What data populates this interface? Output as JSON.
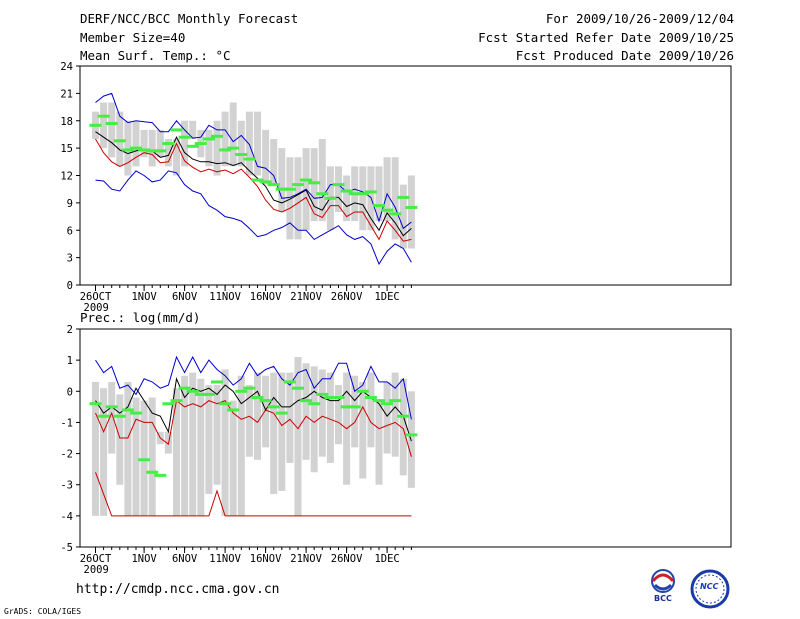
{
  "header": {
    "title": "DERF/NCC/BCC Monthly Forecast",
    "member_size": "Member Size=40",
    "variable": "Mean Surf. Temp.: °C",
    "period": "For 2009/10/26-2009/12/04",
    "started": "Fcst Started Refer Date 2009/10/25",
    "produced": "Fcst Produced Date 2009/10/26"
  },
  "footer": {
    "url": "http://cmdp.ncc.cma.gov.cn",
    "credit": "GrADS: COLA/IGES",
    "bcc_logo": "BCC",
    "ncc_logo": "NCC"
  },
  "colors": {
    "box": "#d2d2d2",
    "mean": "#000000",
    "low": "#cc0000",
    "high": "#0000cc",
    "member": "#44ee44"
  },
  "chart_data": [
    {
      "type": "box-line",
      "title": "Mean Surf. Temp.: °C",
      "x_start_day": 26,
      "days": 40,
      "x_tick_labels": [
        "26OCT",
        "1NOV",
        "6NOV",
        "11NOV",
        "16NOV",
        "21NOV",
        "26NOV",
        "1DEC"
      ],
      "x_sub_label": "2009",
      "yticks": [
        0,
        3,
        6,
        9,
        12,
        15,
        18,
        21,
        24
      ],
      "ylim": [
        0,
        24
      ],
      "box_low": [
        16,
        15,
        14,
        13,
        12,
        13,
        14,
        13,
        14,
        13,
        12,
        13,
        16,
        14,
        13,
        12,
        13,
        13,
        13,
        12,
        12,
        11,
        11,
        8,
        5,
        5,
        6,
        7,
        7,
        6,
        8,
        7,
        7,
        6,
        6,
        7,
        7,
        5,
        4,
        4
      ],
      "box_high": [
        19,
        20,
        20,
        19,
        18,
        18,
        17,
        17,
        17,
        16,
        16,
        18,
        18,
        17,
        17,
        18,
        19,
        20,
        18,
        19,
        19,
        17,
        16,
        15,
        14,
        14,
        15,
        15,
        16,
        13,
        13,
        12,
        13,
        13,
        13,
        13,
        14,
        14,
        11,
        12
      ],
      "black": [
        16.8,
        16.2,
        15.6,
        14.8,
        14.4,
        14.7,
        14.9,
        14.7,
        14,
        14.2,
        16.2,
        14.5,
        13.8,
        13.5,
        13.5,
        13.3,
        13.4,
        13.1,
        13.4,
        12.5,
        11.7,
        10.8,
        9.3,
        9,
        9.4,
        9.9,
        10.4,
        8.6,
        8.2,
        9.6,
        9.6,
        8.6,
        9,
        8.8,
        7.3,
        6,
        7.9,
        6.8,
        5.4,
        6.2
      ],
      "red": [
        16,
        14.5,
        13.5,
        13,
        13.4,
        14,
        14.5,
        14.3,
        13.4,
        13.5,
        15.5,
        13.6,
        12.9,
        12.4,
        12.7,
        12.4,
        12.6,
        12.2,
        12.7,
        11.8,
        10.8,
        9.3,
        8.3,
        8,
        8.4,
        9,
        9.6,
        7.8,
        7.4,
        8.7,
        8.7,
        7.5,
        8,
        8,
        6.5,
        5,
        7,
        6,
        4.8,
        5
      ],
      "blue": [
        20,
        20.7,
        21,
        18.5,
        17.8,
        18,
        17.9,
        17.8,
        16.8,
        16.8,
        18,
        17,
        16.1,
        16.2,
        17.5,
        17,
        17,
        15.7,
        16.4,
        15.4,
        13,
        12.8,
        12,
        9.5,
        9.6,
        10,
        10.5,
        9.5,
        9.6,
        11,
        11,
        10.2,
        10.5,
        10.2,
        9.6,
        7,
        10,
        8.5,
        6.2,
        6.9
      ],
      "blue_low": [
        11.5,
        11.4,
        10.5,
        10.3,
        11.5,
        12.5,
        12,
        11.3,
        11.5,
        12.5,
        12.3,
        11,
        10.3,
        10,
        8.7,
        8.2,
        7.5,
        7.3,
        7,
        6.2,
        5.3,
        5.5,
        6,
        6.3,
        6.8,
        6,
        6,
        5,
        5.5,
        6,
        6.5,
        5.5,
        5,
        5.3,
        4.5,
        2.3,
        3.7,
        4.5,
        4,
        2.5
      ],
      "green": [
        17.5,
        18.5,
        17.7,
        15.8,
        14.8,
        15,
        14.8,
        14.7,
        14.7,
        15.5,
        17,
        16.2,
        15.2,
        15.5,
        16,
        16.3,
        14.8,
        15,
        14.3,
        13.8,
        11.5,
        11.3,
        11,
        10.5,
        10.5,
        11,
        11.5,
        11.2,
        10,
        9.5,
        11,
        10.3,
        10,
        10,
        10.2,
        8.7,
        8.2,
        7.8,
        9.6,
        8.5
      ]
    },
    {
      "type": "box-line",
      "title": "Prec.: log(mm/d)",
      "x_start_day": 26,
      "days": 40,
      "x_tick_labels": [
        "26OCT",
        "1NOV",
        "6NOV",
        "11NOV",
        "16NOV",
        "21NOV",
        "26NOV",
        "1DEC"
      ],
      "x_sub_label": "2009",
      "yticks": [
        -5,
        -4,
        -3,
        -2,
        -1,
        0,
        1,
        2
      ],
      "ylim": [
        -5,
        2
      ],
      "box_low": [
        -4,
        -4,
        -2,
        -3,
        -4,
        -4,
        -4,
        -4,
        -1.7,
        -2,
        -4,
        -4,
        -4,
        -4,
        -3.3,
        -3,
        -4,
        -4,
        -4,
        -2.1,
        -2.2,
        -1.8,
        -3.3,
        -3.2,
        -2.3,
        -4,
        -2.2,
        -2.6,
        -2.1,
        -2.3,
        -1.7,
        -3,
        -1.8,
        -2.8,
        -1.8,
        -3,
        -2,
        -2.1,
        -2.7,
        -3.1
      ],
      "box_high": [
        0.3,
        0.1,
        0.3,
        -0.1,
        0.3,
        -0.2,
        -0.3,
        -0.2,
        -1.3,
        -1.3,
        0.1,
        0.5,
        0.6,
        0.4,
        0.2,
        0.2,
        0.7,
        -0.3,
        0.5,
        0.2,
        0.6,
        0.5,
        0.6,
        0.6,
        0.6,
        1.1,
        0.9,
        0.8,
        0.7,
        0.6,
        0.2,
        0.6,
        0.5,
        0.3,
        0.6,
        -0.3,
        0.3,
        0.6,
        0.4,
        0
      ],
      "black": [
        -0.3,
        -0.7,
        -0.5,
        -0.7,
        -0.5,
        0.1,
        -0.3,
        -0.7,
        -0.8,
        -1.3,
        0.4,
        -0.2,
        0.1,
        0,
        0.1,
        -0.1,
        0.2,
        0,
        -0.4,
        -0.2,
        0,
        -0.6,
        -0.2,
        -0.5,
        -0.5,
        -0.3,
        -0.2,
        0,
        -0.2,
        -0.3,
        -0.3,
        0,
        -0.3,
        0,
        -0.2,
        -0.4,
        -0.8,
        -0.5,
        -0.8,
        -1.6
      ],
      "red": [
        -2.6,
        -3.3,
        -4,
        -4,
        -4,
        -4,
        -4,
        -4,
        -4,
        -4,
        -4,
        -4,
        -4,
        -4,
        -4,
        -3.2,
        -4,
        -4,
        -4,
        -4,
        -4,
        -4,
        -4,
        -4,
        -4,
        -4,
        -4,
        -4,
        -4,
        -4,
        -4,
        -4,
        -4,
        -4,
        -4,
        -4,
        -4,
        -4,
        -4,
        -4
      ],
      "red_mid": [
        -0.7,
        -1.3,
        -0.7,
        -1.5,
        -1.5,
        -0.9,
        -1,
        -1,
        -1.5,
        -1.7,
        -0.3,
        -0.5,
        -0.4,
        -0.5,
        -0.3,
        -0.4,
        -0.3,
        -0.7,
        -0.9,
        -0.8,
        -1,
        -0.6,
        -0.7,
        -1.1,
        -0.9,
        -1.2,
        -0.8,
        -1,
        -0.8,
        -0.9,
        -1,
        -1.2,
        -1,
        -0.5,
        -1,
        -1.2,
        -1.1,
        -1,
        -1.2,
        -2.1
      ],
      "blue": [
        1,
        0.6,
        0.8,
        0.1,
        0.2,
        -0.1,
        0.4,
        0.3,
        0.1,
        0.2,
        1.1,
        0.6,
        1.1,
        0.6,
        1,
        0.7,
        0.5,
        0.2,
        0.4,
        0.9,
        0.5,
        0.7,
        0.8,
        0.4,
        0.2,
        0.6,
        0.7,
        0.1,
        0.4,
        0.4,
        0.9,
        0.9,
        0,
        0.2,
        0.8,
        0.3,
        0.3,
        0.1,
        0.4,
        -0.9
      ],
      "green": [
        -0.4,
        -0.8,
        -0.5,
        -0.8,
        -0.6,
        -0.7,
        -2.2,
        -2.6,
        -2.7,
        -0.4,
        -0.3,
        0.1,
        0,
        -0.1,
        -0.1,
        0.3,
        -0.4,
        -0.6,
        0,
        0.1,
        -0.2,
        -0.3,
        -0.5,
        -0.7,
        0.3,
        0.1,
        -0.3,
        -0.4,
        -0.1,
        -0.2,
        -0.2,
        -0.5,
        -0.5,
        0,
        -0.2,
        -0.3,
        -0.4,
        -0.3,
        -0.8,
        -1.4
      ]
    }
  ]
}
